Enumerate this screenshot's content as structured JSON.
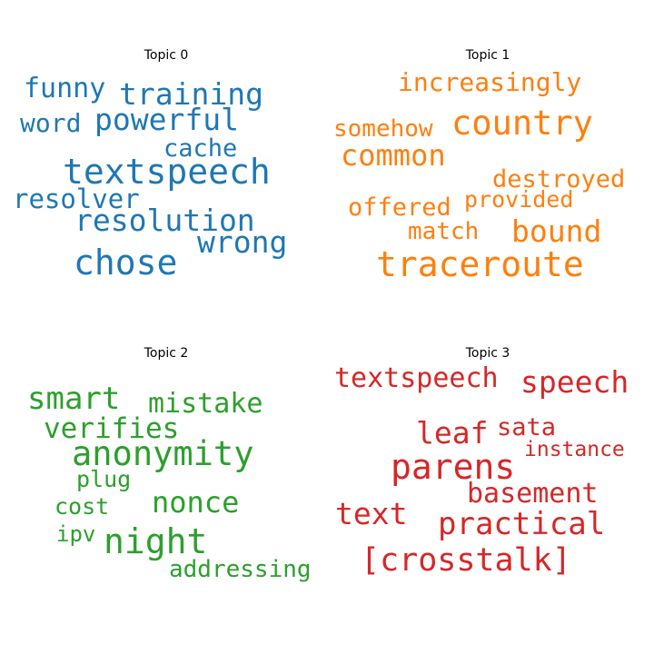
{
  "chart_data": [
    {
      "type": "wordcloud",
      "title": "Topic 0",
      "color": "#1f77b4",
      "words": [
        "funny",
        "training",
        "word",
        "powerful",
        "cache",
        "textspeech",
        "resolver",
        "resolution",
        "wrong",
        "chose"
      ]
    },
    {
      "type": "wordcloud",
      "title": "Topic 1",
      "color": "#ff7f0e",
      "words": [
        "increasingly",
        "somehow",
        "country",
        "common",
        "destroyed",
        "offered",
        "provided",
        "match",
        "bound",
        "traceroute"
      ]
    },
    {
      "type": "wordcloud",
      "title": "Topic 2",
      "color": "#2ca02c",
      "words": [
        "smart",
        "mistake",
        "verifies",
        "anonymity",
        "plug",
        "nonce",
        "cost",
        "ipv",
        "night",
        "addressing"
      ]
    },
    {
      "type": "wordcloud",
      "title": "Topic 3",
      "color": "#d62728",
      "words": [
        "textspeech",
        "speech",
        "leaf",
        "sata",
        "instance",
        "parens",
        "basement",
        "text",
        "practical",
        "[crosstalk]"
      ]
    }
  ]
}
